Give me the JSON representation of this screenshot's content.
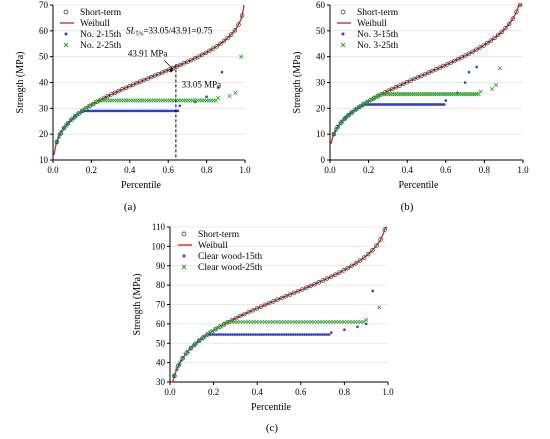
{
  "chart_data": [
    {
      "type": "scatter",
      "panel_label": "(a)",
      "xlabel": "Percentile",
      "ylabel": "Strength (MPa)",
      "xlim": [
        0.0,
        1.0
      ],
      "ylim": [
        10,
        70
      ],
      "xticks": [
        "0.0",
        "0.2",
        "0.4",
        "0.6",
        "0.8",
        "1.0"
      ],
      "yticks": [
        "10",
        "20",
        "30",
        "40",
        "50",
        "60",
        "70"
      ],
      "legend": [
        "Short-term",
        "Weibull",
        "No. 2-15th",
        "No. 2-25th"
      ],
      "legend_position": "top-left",
      "weibull": {
        "k": 3.94,
        "lambda": 45.8
      },
      "flat": {
        "15th": 29.0,
        "25th": 33.05
      },
      "tails": {
        "15th": [
          [
            0.66,
            31
          ],
          [
            0.74,
            32.5
          ],
          [
            0.8,
            34.5
          ],
          [
            0.86,
            38
          ],
          [
            0.88,
            44
          ]
        ],
        "25th": [
          [
            0.86,
            34
          ],
          [
            0.92,
            34.8
          ],
          [
            0.95,
            36
          ],
          [
            0.98,
            50
          ]
        ]
      },
      "annotations": {
        "ratio_label": "SL",
        "ratio_sub": "5%",
        "ratio_text": "=33.05/43.91=0.75",
        "upper_label": "43.91 MPa",
        "lower_label": "33.05 MPa",
        "marker_x": 0.64
      }
    },
    {
      "type": "scatter",
      "panel_label": "(b)",
      "xlabel": "Percentile",
      "ylabel": "Strength (MPa)",
      "xlim": [
        0.0,
        1.0
      ],
      "ylim": [
        0,
        60
      ],
      "xticks": [
        "0.0",
        "0.2",
        "0.4",
        "0.6",
        "0.8",
        "1.0"
      ],
      "yticks": [
        "0",
        "10",
        "20",
        "30",
        "40",
        "50",
        "60"
      ],
      "legend": [
        "Short-term",
        "Weibull",
        "No. 3-15th",
        "No. 3-25th"
      ],
      "legend_position": "top-left",
      "weibull": {
        "k": 2.94,
        "lambda": 37.9
      },
      "flat": {
        "15th": 21.5,
        "25th": 25.5
      },
      "tails": {
        "15th": [
          [
            0.6,
            23
          ],
          [
            0.66,
            26
          ],
          [
            0.7,
            30
          ],
          [
            0.72,
            34
          ],
          [
            0.76,
            36
          ]
        ],
        "25th": [
          [
            0.78,
            26.5
          ],
          [
            0.84,
            27.5
          ],
          [
            0.86,
            29
          ],
          [
            0.88,
            35.5
          ]
        ]
      }
    },
    {
      "type": "scatter",
      "panel_label": "(c)",
      "xlabel": "Percentile",
      "ylabel": "Strength (MPa)",
      "xlim": [
        0.0,
        1.0
      ],
      "ylim": [
        30,
        110
      ],
      "xticks": [
        "0.0",
        "0.2",
        "0.4",
        "0.6",
        "0.8",
        "1.0"
      ],
      "yticks": [
        "30",
        "40",
        "50",
        "60",
        "70",
        "80",
        "90",
        "100",
        "110"
      ],
      "legend": [
        "Short-term",
        "Weibull",
        "Clear wood-15th",
        "Clear wood-25th"
      ],
      "legend_position": "top-left",
      "weibull": {
        "k": 4.5,
        "lambda": 79.0
      },
      "flat": {
        "15th": 54.5,
        "25th": 61.0
      },
      "tails": {
        "15th": [
          [
            0.74,
            55.5
          ],
          [
            0.8,
            57
          ],
          [
            0.86,
            58.5
          ],
          [
            0.9,
            60
          ],
          [
            0.93,
            77
          ]
        ],
        "25th": [
          [
            0.9,
            62
          ],
          [
            0.96,
            68.5
          ]
        ]
      }
    }
  ]
}
